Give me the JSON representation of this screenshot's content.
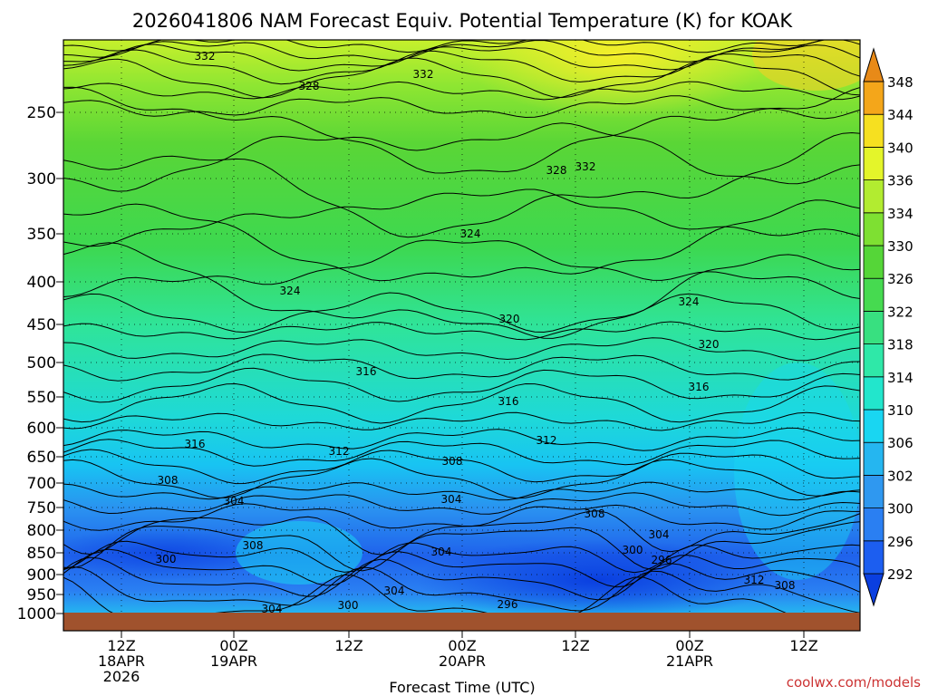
{
  "chart_data": {
    "type": "heatmap",
    "title": "2026041806 NAM Forecast Equiv. Potential Temperature (K) for KOAK",
    "xlabel": "Forecast Time (UTC)",
    "ylabel": "",
    "credit": "coolwx.com/models",
    "y_ticks": [
      "250",
      "300",
      "350",
      "400",
      "450",
      "500",
      "550",
      "600",
      "650",
      "700",
      "750",
      "800",
      "850",
      "900",
      "950",
      "1000"
    ],
    "x_ticks": [
      {
        "time": "12Z",
        "date": "18APR",
        "year": "2026"
      },
      {
        "time": "00Z",
        "date": "19APR",
        "year": ""
      },
      {
        "time": "12Z",
        "date": "",
        "year": ""
      },
      {
        "time": "00Z",
        "date": "20APR",
        "year": ""
      },
      {
        "time": "12Z",
        "date": "",
        "year": ""
      },
      {
        "time": "00Z",
        "date": "21APR",
        "year": ""
      },
      {
        "time": "12Z",
        "date": "",
        "year": ""
      }
    ],
    "colorbar_levels": [
      "292",
      "296",
      "300",
      "302",
      "306",
      "310",
      "314",
      "318",
      "322",
      "326",
      "330",
      "334",
      "336",
      "340",
      "344",
      "348"
    ],
    "colorbar_colors": [
      "#0a3fe0",
      "#1c5ef0",
      "#2a7ff2",
      "#2f98f0",
      "#25b6f0",
      "#19d6f2",
      "#22e6cc",
      "#2fe8a8",
      "#38e080",
      "#46da50",
      "#55d638",
      "#7ee032",
      "#b2ec30",
      "#e4f52a",
      "#f6e020",
      "#f4a61a",
      "#e88a18"
    ],
    "contour_labels": [
      {
        "text": "332"
      },
      {
        "text": "332"
      },
      {
        "text": "328"
      },
      {
        "text": "328"
      },
      {
        "text": "332"
      },
      {
        "text": "324"
      },
      {
        "text": "324"
      },
      {
        "text": "324"
      },
      {
        "text": "320"
      },
      {
        "text": "320"
      },
      {
        "text": "316"
      },
      {
        "text": "316"
      },
      {
        "text": "316"
      },
      {
        "text": "316"
      },
      {
        "text": "312"
      },
      {
        "text": "312"
      },
      {
        "text": "308"
      },
      {
        "text": "308"
      },
      {
        "text": "308"
      },
      {
        "text": "308"
      },
      {
        "text": "304"
      },
      {
        "text": "304"
      },
      {
        "text": "304"
      },
      {
        "text": "304"
      },
      {
        "text": "304"
      },
      {
        "text": "304"
      },
      {
        "text": "300"
      },
      {
        "text": "300"
      },
      {
        "text": "300"
      },
      {
        "text": "296"
      },
      {
        "text": "296"
      },
      {
        "text": "312"
      },
      {
        "text": "308"
      }
    ],
    "grid": "dotted",
    "colorbar": "right"
  }
}
